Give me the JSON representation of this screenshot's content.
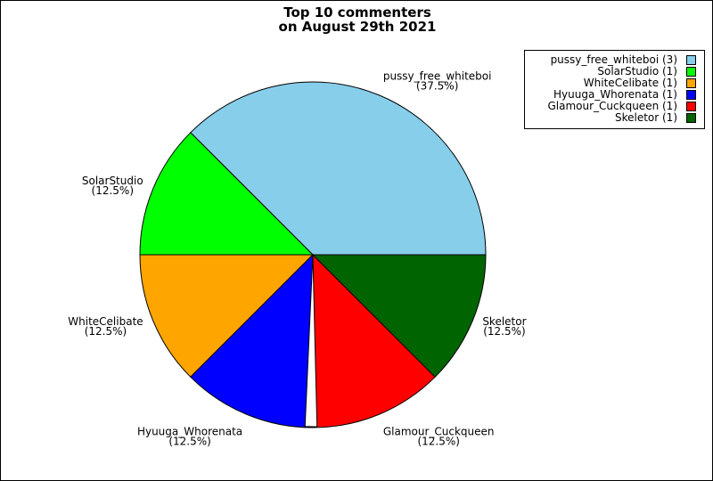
{
  "chart_data": {
    "type": "pie",
    "title": "Top 10 commenters\non August 29th 2021",
    "title_lines": [
      "Top 10 commenters",
      "on August 29th 2021"
    ],
    "legend_position": "top-right",
    "slices": [
      {
        "name": "pussy_free_whiteboi",
        "value": 3,
        "percent": "37.5%",
        "color": "#87ceeb",
        "legend": "pussy_free_whiteboi (3)"
      },
      {
        "name": "SolarStudio",
        "value": 1,
        "percent": "12.5%",
        "color": "#00ff00",
        "legend": "SolarStudio (1)"
      },
      {
        "name": "WhiteCelibate",
        "value": 1,
        "percent": "12.5%",
        "color": "#ffa500",
        "legend": "WhiteCelibate (1)"
      },
      {
        "name": "Hyuuga_Whorenata",
        "value": 1,
        "percent": "12.5%",
        "color": "#0000ff",
        "legend": "Hyuuga_Whorenata (1)"
      },
      {
        "name": "Glamour_Cuckqueen",
        "value": 1,
        "percent": "12.5%",
        "color": "#ff0000",
        "legend": "Glamour_Cuckqueen (1)"
      },
      {
        "name": "Skeletor",
        "value": 1,
        "percent": "12.5%",
        "color": "#006400",
        "legend": "Skeletor (1)"
      }
    ]
  }
}
